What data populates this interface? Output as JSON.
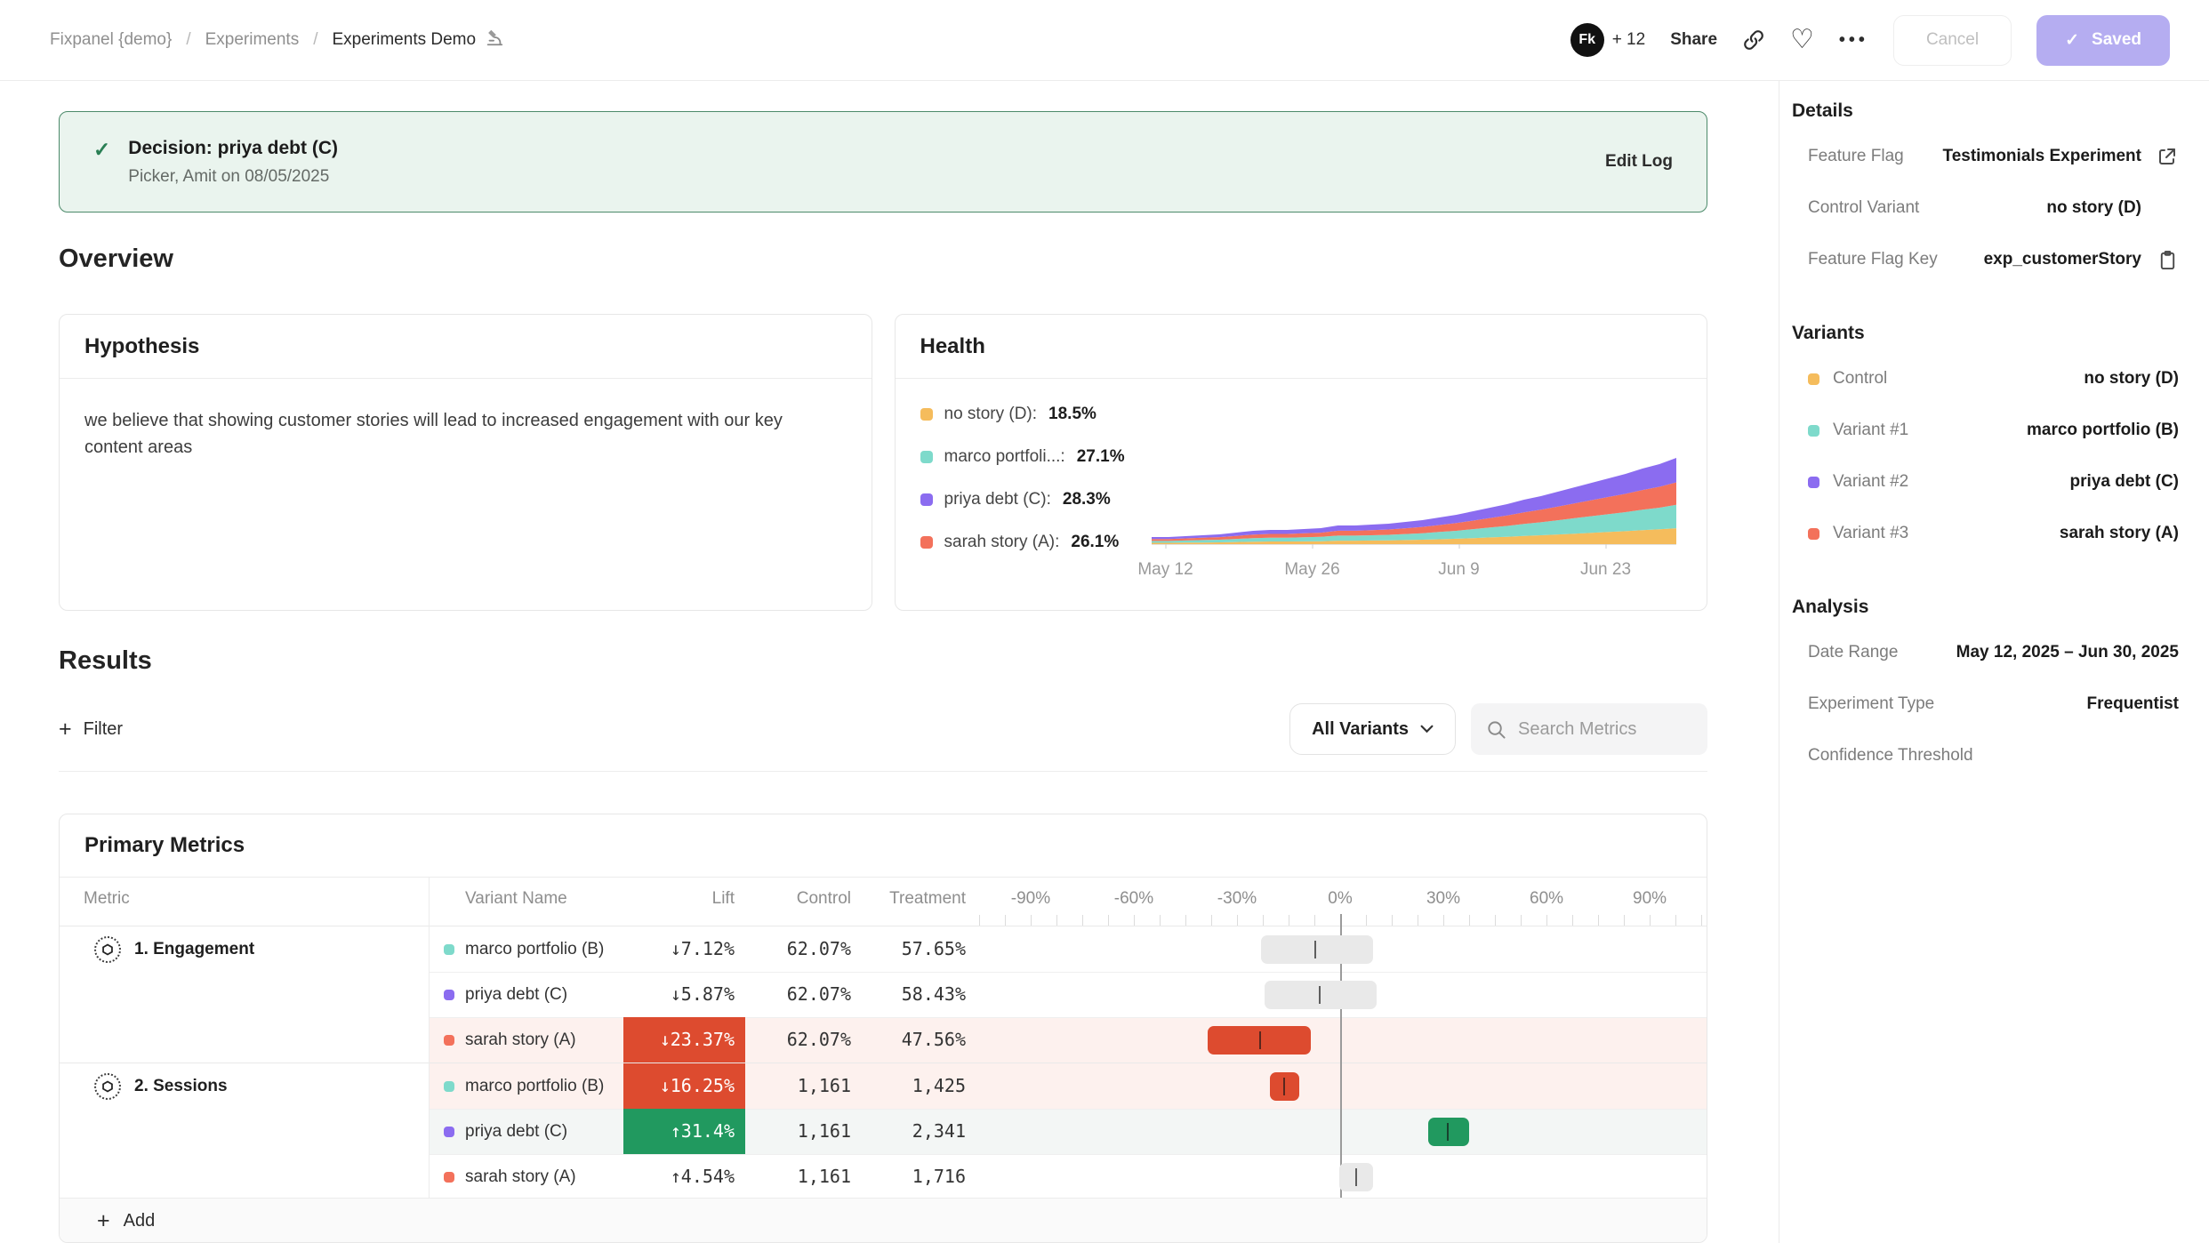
{
  "header": {
    "breadcrumb": [
      "Fixpanel {demo}",
      "Experiments",
      "Experiments Demo"
    ],
    "title_icon": "microscope-icon",
    "avatar_text": "Fk",
    "avatar_more": "+ 12",
    "share_label": "Share",
    "cancel_label": "Cancel",
    "saved_label": "Saved"
  },
  "banner": {
    "title": "Decision: priya debt (C)",
    "subtitle": "Picker, Amit on 08/05/2025",
    "action": "Edit Log"
  },
  "overview": {
    "title": "Overview",
    "hypothesis": {
      "title": "Hypothesis",
      "body": "we believe that showing customer stories will lead to increased engagement with our key content areas"
    },
    "health": {
      "title": "Health"
    }
  },
  "chart_data": {
    "type": "area",
    "title": "Health",
    "stacked": true,
    "legend_position": "left",
    "x_tick_labels": [
      "May 12",
      "May 26",
      "Jun 9",
      "Jun 23"
    ],
    "x_range": [
      "May 12, 2025",
      "Jun 30, 2025"
    ],
    "legend": [
      {
        "label": "no story (D)",
        "value": "18.5%",
        "color": "#f5bc5c"
      },
      {
        "label": "marco portfoli...",
        "value": "27.1%",
        "color": "#7edacb"
      },
      {
        "label": "priya debt (C)",
        "value": "28.3%",
        "color": "#8b6cf0"
      },
      {
        "label": "sarah story (A)",
        "value": "26.1%",
        "color": "#f3715b"
      }
    ],
    "stack_order": [
      "no story (D)",
      "marco portfolio (B)",
      "sarah story (A)",
      "priya debt (C)"
    ],
    "stack_colors": [
      "#f5bc5c",
      "#7edacb",
      "#f3715b",
      "#8b6cf0"
    ],
    "shares": [
      0.185,
      0.271,
      0.261,
      0.283
    ],
    "totals": [
      8,
      8,
      9,
      10,
      11,
      13,
      15,
      16,
      16,
      17,
      18,
      21,
      21,
      22,
      23,
      25,
      27,
      30,
      33,
      37,
      41,
      45,
      50,
      54,
      59,
      64,
      69,
      74,
      79,
      85,
      90,
      97
    ]
  },
  "results": {
    "title": "Results",
    "filter_label": "Filter",
    "variants_dropdown": "All Variants",
    "search_placeholder": "Search Metrics"
  },
  "primary_metrics": {
    "title": "Primary Metrics",
    "add_label": "Add",
    "columns": {
      "metric": "Metric",
      "variant": "Variant Name",
      "lift": "Lift",
      "control": "Control",
      "treatment": "Treatment"
    },
    "axis": {
      "labels": [
        "-90%",
        "-60%",
        "-30%",
        "0%",
        "30%",
        "60%",
        "90%"
      ],
      "values": [
        -90,
        -60,
        -30,
        0,
        30,
        60,
        90
      ],
      "min": -105,
      "max": 107,
      "minor_tick_step": 7.5
    },
    "groups": [
      {
        "metric": "1. Engagement",
        "rows": [
          {
            "variant": "marco portfolio (B)",
            "color": "#7edacb",
            "lift": "↓7.12%",
            "lift_style": "plain",
            "control": "62.07%",
            "treatment": "57.65%",
            "ci": [
              -23.0,
              9.5
            ],
            "point": -7.12,
            "bar": "gray",
            "row_bg": "none"
          },
          {
            "variant": "priya debt (C)",
            "color": "#8b6cf0",
            "lift": "↓5.87%",
            "lift_style": "plain",
            "control": "62.07%",
            "treatment": "58.43%",
            "ci": [
              -22.0,
              10.5
            ],
            "point": -5.87,
            "bar": "gray",
            "row_bg": "none"
          },
          {
            "variant": "sarah story (A)",
            "color": "#f3715b",
            "lift": "↓23.37%",
            "lift_style": "red",
            "control": "62.07%",
            "treatment": "47.56%",
            "ci": [
              -38.5,
              -8.5
            ],
            "point": -23.37,
            "bar": "red",
            "row_bg": "negative"
          }
        ]
      },
      {
        "metric": "2. Sessions",
        "rows": [
          {
            "variant": "marco portfolio (B)",
            "color": "#7edacb",
            "lift": "↓16.25%",
            "lift_style": "red",
            "control": "1,161",
            "treatment": "1,425",
            "ci": [
              -20.5,
              -12.0
            ],
            "point": -16.25,
            "bar": "red",
            "row_bg": "negative"
          },
          {
            "variant": "priya debt (C)",
            "color": "#8b6cf0",
            "lift": "↑31.4%",
            "lift_style": "green",
            "control": "1,161",
            "treatment": "2,341",
            "ci": [
              25.5,
              37.5
            ],
            "point": 31.4,
            "bar": "green",
            "row_bg": "positive"
          },
          {
            "variant": "sarah story (A)",
            "color": "#f3715b",
            "lift": "↑4.54%",
            "lift_style": "plain",
            "control": "1,161",
            "treatment": "1,716",
            "ci": [
              -0.3,
              9.7
            ],
            "point": 4.54,
            "bar": "gray",
            "row_bg": "none"
          }
        ]
      }
    ]
  },
  "sidebar": {
    "sections": [
      {
        "title": "Details",
        "rows": [
          {
            "label": "Feature Flag",
            "value": "Testimonials Experiment",
            "icon": "external-link-icon"
          },
          {
            "label": "Control Variant",
            "value": "no story (D)",
            "icon": "blank"
          },
          {
            "label": "Feature Flag Key",
            "value": "exp_customerStory",
            "icon": "clipboard-icon"
          }
        ]
      },
      {
        "title": "Variants",
        "rows": [
          {
            "label": "Control",
            "value": "no story (D)",
            "swatch": "#f5bc5c"
          },
          {
            "label": "Variant #1",
            "value": "marco portfolio (B)",
            "swatch": "#7edacb"
          },
          {
            "label": "Variant #2",
            "value": "priya debt (C)",
            "swatch": "#8b6cf0"
          },
          {
            "label": "Variant #3",
            "value": "sarah story (A)",
            "swatch": "#f3715b"
          }
        ]
      },
      {
        "title": "Analysis",
        "rows": [
          {
            "label": "Date Range",
            "value": "May 12, 2025 – Jun 30, 2025"
          },
          {
            "label": "Experiment Type",
            "value": "Frequentist"
          },
          {
            "label": "Confidence Threshold",
            "value": ""
          }
        ]
      }
    ]
  },
  "colors": {
    "accent_purple": "#b5adf1",
    "positive_green": "#21995f",
    "negative_red": "#dd4b2f",
    "row_negative_bg": "#fdf1ee",
    "row_positive_bg": "#f3f6f5",
    "ci_bar_gray": "#e9e9e9",
    "banner_bg": "#eaf4ee",
    "banner_border": "#4c8a6a"
  }
}
